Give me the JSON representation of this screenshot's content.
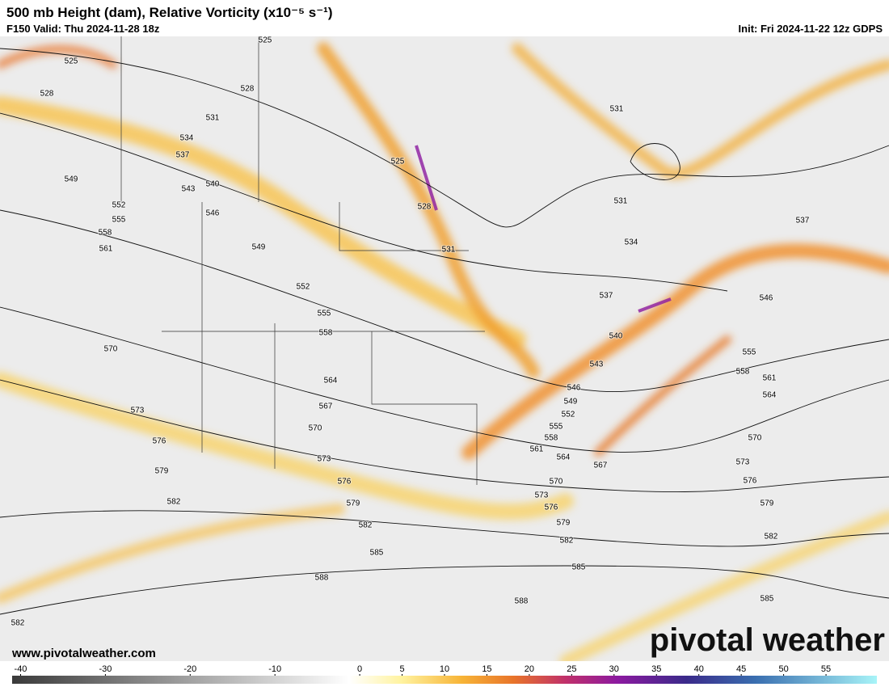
{
  "header": {
    "title": "500 mb Height (dam), Relative Vorticity (x10⁻⁵ s⁻¹)",
    "valid": "F150 Valid: Thu 2024-11-28 18z",
    "init": "Init: Fri 2024-11-22 12z GDPS"
  },
  "contour_labels": [
    525,
    525,
    528,
    528,
    531,
    534,
    537,
    540,
    543,
    546,
    549,
    552,
    555,
    558,
    561,
    549,
    552,
    555,
    558,
    525,
    528,
    531,
    531,
    531,
    534,
    537,
    540,
    543,
    546,
    549,
    552,
    555,
    558,
    561,
    564,
    567,
    570,
    573,
    576,
    579,
    582,
    585,
    588,
    537,
    546,
    555,
    558,
    561,
    564,
    570,
    573,
    576,
    579,
    582,
    585,
    570,
    564,
    567,
    570,
    573,
    576,
    579,
    582,
    585,
    588,
    573,
    576,
    579,
    582,
    582
  ],
  "website": "www.pivotalweather.com",
  "watermark": "pivotal weather",
  "colorbar": {
    "range": [
      -41,
      61
    ],
    "ticks": [
      -40,
      -30,
      -20,
      -10,
      0,
      5,
      10,
      15,
      20,
      25,
      30,
      35,
      40,
      45,
      50,
      55
    ]
  }
}
